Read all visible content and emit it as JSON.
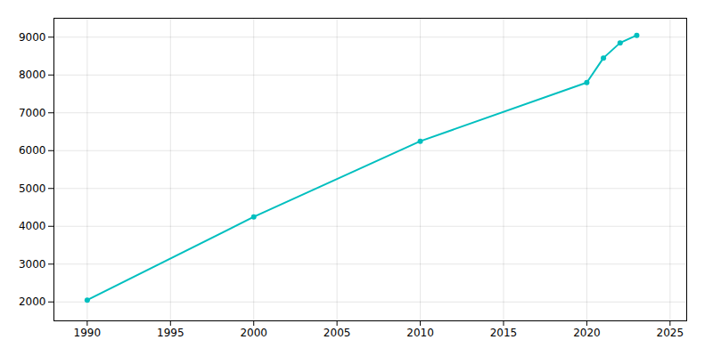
{
  "chart_data": {
    "type": "line",
    "x": [
      1990,
      2000,
      2010,
      2020,
      2021,
      2022,
      2023
    ],
    "values": [
      2048,
      4248,
      6250,
      7800,
      8450,
      8850,
      9050
    ],
    "color": "#00BFBF",
    "marker": "circle",
    "xlim": [
      1988,
      2026
    ],
    "ylim": [
      1500,
      9500
    ],
    "xticks": [
      1990,
      1995,
      2000,
      2005,
      2010,
      2015,
      2020,
      2025
    ],
    "yticks": [
      2000,
      3000,
      4000,
      5000,
      6000,
      7000,
      8000,
      9000
    ],
    "grid": true
  }
}
